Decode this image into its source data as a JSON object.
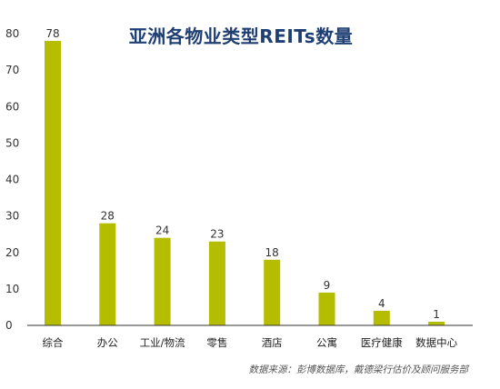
{
  "chart_data": {
    "type": "bar",
    "title": "亚洲各物业类型REITs数量",
    "categories": [
      "综合",
      "办公",
      "工业/物流",
      "零售",
      "酒店",
      "公寓",
      "医疗健康",
      "数据中心"
    ],
    "values": [
      78,
      28,
      24,
      23,
      18,
      9,
      4,
      1
    ],
    "ylim": [
      0,
      80
    ],
    "yticks": [
      0,
      10,
      20,
      30,
      40,
      50,
      60,
      70,
      80
    ],
    "xlabel": "",
    "ylabel": "",
    "grid": false,
    "source": "数据来源：彭博数据库，戴德梁行估价及顾问服务部"
  },
  "colors": {
    "bar": "#b5bd00",
    "title": "#1f3f73",
    "axis": "#333333"
  }
}
